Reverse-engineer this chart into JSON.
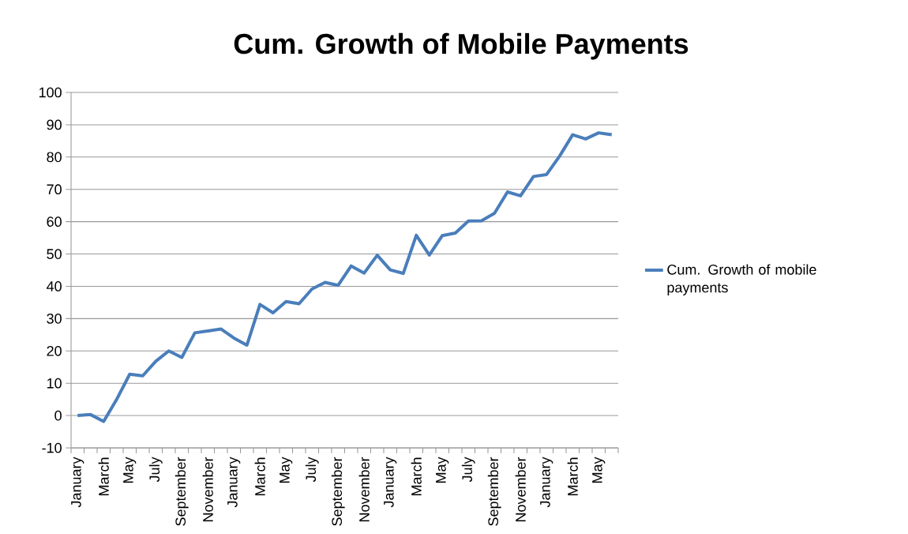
{
  "chart_data": {
    "type": "line",
    "title": "Cum. Growth of Mobile Payments",
    "categories": [
      "January",
      null,
      "March",
      null,
      "May",
      null,
      "July",
      null,
      "September",
      null,
      "November",
      null,
      "January",
      null,
      "March",
      null,
      "May",
      null,
      "July",
      null,
      "September",
      null,
      "November",
      null,
      "January",
      null,
      "March",
      null,
      "May",
      null,
      "July",
      null,
      "September",
      null,
      "November",
      null,
      "January",
      null,
      "March",
      null,
      "May",
      null
    ],
    "series": [
      {
        "name": "Cum. Growth of mobile payments",
        "color": "#4a7ebb",
        "values": [
          0,
          0.3,
          -1.8,
          5,
          12.8,
          12.3,
          16.8,
          20,
          18,
          25.6,
          26.2,
          26.8,
          24,
          21.8,
          34.4,
          31.8,
          35.3,
          34.6,
          39.2,
          41.2,
          40.3,
          46.3,
          44.1,
          49.6,
          45.1,
          44,
          55.8,
          49.7,
          55.7,
          56.5,
          60.2,
          60.3,
          62.6,
          69.2,
          68,
          74,
          74.6,
          80.3,
          86.9,
          85.6,
          87.5,
          86.9
        ]
      }
    ],
    "ylim": [
      -10,
      100
    ],
    "yticks": [
      -10,
      0,
      10,
      20,
      30,
      40,
      50,
      60,
      70,
      80,
      90,
      100
    ],
    "grid": "y",
    "legend": "right",
    "line_style": "solid"
  }
}
